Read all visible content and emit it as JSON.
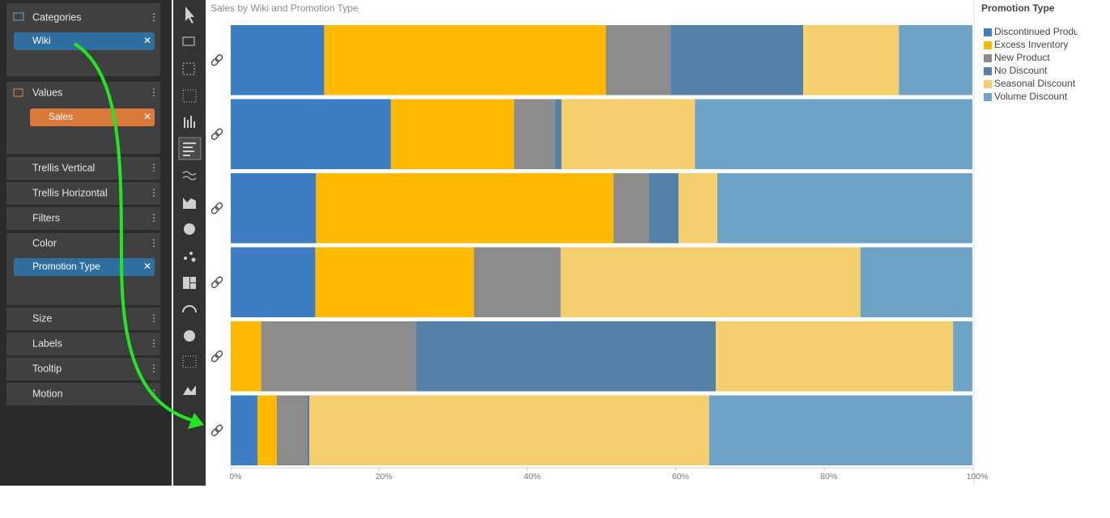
{
  "panel": {
    "categories": "Categories",
    "wiki": "Wiki",
    "values": "Values",
    "sales": "Sales",
    "trellis_vertical": "Trellis Vertical",
    "trellis_horizontal": "Trellis Horizontal",
    "filters": "Filters",
    "color": "Color",
    "promotion_type": "Promotion Type",
    "size": "Size",
    "labels": "Labels",
    "tooltip": "Tooltip",
    "motion": "Motion"
  },
  "chart_data": {
    "type": "stacked_bar_horizontal",
    "title": "Sales by Wiki and Promotion Type",
    "legend_title": "Promotion Type",
    "categories": [
      null,
      null,
      null,
      null,
      null,
      null
    ],
    "series": [
      {
        "name": "Discontinued Product",
        "color": "#3c7dc4",
        "values": [
          12.6,
          21.6,
          11.5,
          11.4,
          0,
          3.6
        ]
      },
      {
        "name": "Excess Inventory",
        "color": "#ffb900",
        "values": [
          38.0,
          16.6,
          40.1,
          21.4,
          4.1,
          2.6
        ]
      },
      {
        "name": "New Product",
        "color": "#8c8c8c",
        "values": [
          8.7,
          5.5,
          4.8,
          11.7,
          20.9,
          4.1
        ]
      },
      {
        "name": "No Discount",
        "color": "#5581a8",
        "values": [
          17.9,
          0.9,
          4.0,
          0,
          40.4,
          0.3
        ]
      },
      {
        "name": "Seasonal Discount",
        "color": "#f5cf6e",
        "values": [
          12.9,
          18.0,
          5.2,
          40.4,
          32.0,
          53.9
        ]
      },
      {
        "name": "Volume Discount",
        "color": "#70a3c8",
        "values": [
          9.9,
          37.4,
          34.4,
          15.1,
          2.6,
          35.5
        ]
      }
    ],
    "xlim": [
      0,
      100
    ],
    "xticks": [
      {
        "value": 0,
        "label": "0%"
      },
      {
        "value": 20,
        "label": "20%"
      },
      {
        "value": 40,
        "label": "40%"
      },
      {
        "value": 60,
        "label": "60%"
      },
      {
        "value": 80,
        "label": "80%"
      },
      {
        "value": 100,
        "label": "100%"
      }
    ],
    "legend": "right"
  }
}
